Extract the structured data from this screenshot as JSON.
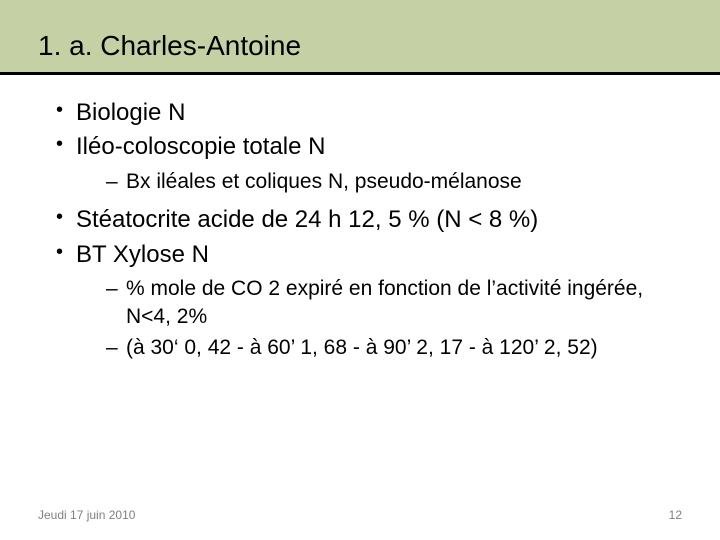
{
  "slide": {
    "title": "1. a. Charles-Antoine",
    "title_fontsize": 28,
    "title_band_color": "#c5d1a5",
    "title_underline_color": "#000000",
    "background_color": "#ffffff",
    "text_color": "#000000",
    "footer_color": "#808080",
    "bullets": [
      {
        "text": "Biologie N",
        "children": []
      },
      {
        "text": "Iléo-coloscopie totale N",
        "children": [
          {
            "text": "Bx iléales et coliques N, pseudo-mélanose"
          }
        ]
      },
      {
        "text": "Stéatocrite acide de 24 h 12, 5 % (N < 8 %)",
        "children": []
      },
      {
        "text": "BT Xylose N",
        "children": [
          {
            "text": "% mole de CO 2 expiré en fonction de l’activité ingérée, N<4, 2%"
          },
          {
            "text": "(à 30‘ 0, 42 - à 60’ 1, 68 - à 90’ 2, 17 - à 120’ 2, 52)"
          }
        ]
      }
    ],
    "level1_fontsize": 24,
    "level2_fontsize": 21,
    "font_family": "Arial"
  },
  "footer": {
    "date": "Jeudi 17 juin 2010",
    "page_number": "12",
    "fontsize": 12
  }
}
